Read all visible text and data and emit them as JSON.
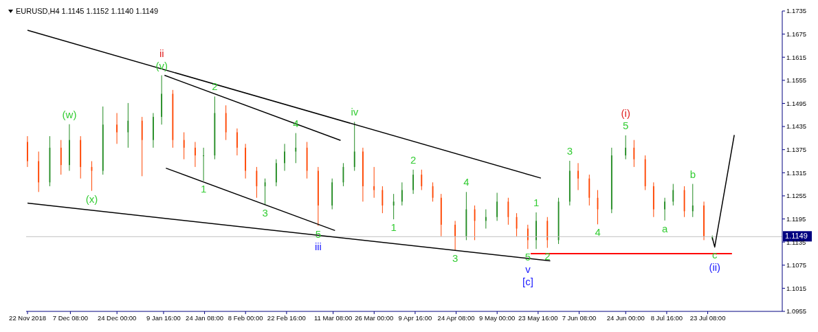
{
  "chart_data": {
    "type": "candlestick",
    "title": "EURUSD,H4  1.1145 1.1152 1.1140 1.1149",
    "x": [
      "2018-11-22",
      "2018-11-26",
      "2018-11-30",
      "2018-12-04",
      "2018-12-07",
      "2018-12-11",
      "2018-12-15",
      "2018-12-19",
      "2018-12-24",
      "2018-12-28",
      "2019-01-02",
      "2019-01-06",
      "2019-01-09",
      "2019-01-13",
      "2019-01-17",
      "2019-01-21",
      "2019-01-24",
      "2019-01-28",
      "2019-02-01",
      "2019-02-05",
      "2019-02-08",
      "2019-02-12",
      "2019-02-15",
      "2019-02-19",
      "2019-02-22",
      "2019-02-26",
      "2019-03-02",
      "2019-03-06",
      "2019-03-11",
      "2019-03-15",
      "2019-03-19",
      "2019-03-22",
      "2019-03-26",
      "2019-03-29",
      "2019-04-02",
      "2019-04-05",
      "2019-04-09",
      "2019-04-12",
      "2019-04-16",
      "2019-04-19",
      "2019-04-24",
      "2019-04-28",
      "2019-05-01",
      "2019-05-05",
      "2019-05-09",
      "2019-05-13",
      "2019-05-16",
      "2019-05-20",
      "2019-05-23",
      "2019-05-27",
      "2019-05-31",
      "2019-06-04",
      "2019-06-07",
      "2019-06-11",
      "2019-06-14",
      "2019-06-19",
      "2019-06-24",
      "2019-06-27",
      "2019-07-01",
      "2019-07-04",
      "2019-07-08",
      "2019-07-11",
      "2019-07-15",
      "2019-07-18",
      "2019-07-22",
      "2019-07-25"
    ],
    "ohlc": [
      [
        1.1395,
        1.141,
        1.133,
        1.1345
      ],
      [
        1.1345,
        1.137,
        1.1265,
        1.129
      ],
      [
        1.129,
        1.141,
        1.128,
        1.138
      ],
      [
        1.138,
        1.14,
        1.131,
        1.1335
      ],
      [
        1.1335,
        1.1441,
        1.132,
        1.14
      ],
      [
        1.14,
        1.141,
        1.13,
        1.133
      ],
      [
        1.133,
        1.1345,
        1.1268,
        1.132
      ],
      [
        1.132,
        1.1487,
        1.131,
        1.144
      ],
      [
        1.144,
        1.147,
        1.139,
        1.142
      ],
      [
        1.142,
        1.1496,
        1.138,
        1.145
      ],
      [
        1.145,
        1.146,
        1.1306,
        1.14
      ],
      [
        1.14,
        1.147,
        1.138,
        1.146
      ],
      [
        1.146,
        1.1568,
        1.144,
        1.152
      ],
      [
        1.152,
        1.153,
        1.138,
        1.14
      ],
      [
        1.14,
        1.142,
        1.135,
        1.138
      ],
      [
        1.138,
        1.1395,
        1.133,
        1.136
      ],
      [
        1.136,
        1.138,
        1.1294,
        1.136
      ],
      [
        1.136,
        1.1513,
        1.135,
        1.147
      ],
      [
        1.147,
        1.149,
        1.14,
        1.142
      ],
      [
        1.142,
        1.143,
        1.136,
        1.138
      ],
      [
        1.138,
        1.139,
        1.13,
        1.132
      ],
      [
        1.132,
        1.133,
        1.125,
        1.128
      ],
      [
        1.128,
        1.13,
        1.1232,
        1.129
      ],
      [
        1.129,
        1.135,
        1.128,
        1.134
      ],
      [
        1.134,
        1.139,
        1.132,
        1.137
      ],
      [
        1.137,
        1.1418,
        1.134,
        1.138
      ],
      [
        1.138,
        1.1395,
        1.13,
        1.132
      ],
      [
        1.132,
        1.133,
        1.1177,
        1.123
      ],
      [
        1.123,
        1.13,
        1.122,
        1.129
      ],
      [
        1.129,
        1.134,
        1.128,
        1.133
      ],
      [
        1.133,
        1.1447,
        1.132,
        1.137
      ],
      [
        1.137,
        1.138,
        1.124,
        1.128
      ],
      [
        1.128,
        1.133,
        1.125,
        1.127
      ],
      [
        1.127,
        1.128,
        1.121,
        1.123
      ],
      [
        1.123,
        1.126,
        1.1194,
        1.124
      ],
      [
        1.124,
        1.129,
        1.123,
        1.127
      ],
      [
        1.127,
        1.1323,
        1.126,
        1.131
      ],
      [
        1.131,
        1.1323,
        1.127,
        1.128
      ],
      [
        1.128,
        1.129,
        1.124,
        1.125
      ],
      [
        1.125,
        1.126,
        1.115,
        1.118
      ],
      [
        1.118,
        1.119,
        1.1113,
        1.115
      ],
      [
        1.115,
        1.1265,
        1.114,
        1.122
      ],
      [
        1.122,
        1.123,
        1.114,
        1.119
      ],
      [
        1.119,
        1.122,
        1.117,
        1.12
      ],
      [
        1.12,
        1.1263,
        1.119,
        1.124
      ],
      [
        1.124,
        1.125,
        1.118,
        1.12
      ],
      [
        1.12,
        1.121,
        1.115,
        1.117
      ],
      [
        1.117,
        1.118,
        1.1117,
        1.114
      ],
      [
        1.114,
        1.1212,
        1.1117,
        1.119
      ],
      [
        1.119,
        1.12,
        1.112,
        1.114
      ],
      [
        1.114,
        1.125,
        1.113,
        1.124
      ],
      [
        1.124,
        1.1346,
        1.123,
        1.132
      ],
      [
        1.132,
        1.134,
        1.127,
        1.13
      ],
      [
        1.13,
        1.131,
        1.123,
        1.125
      ],
      [
        1.125,
        1.127,
        1.1181,
        1.122
      ],
      [
        1.122,
        1.138,
        1.121,
        1.136
      ],
      [
        1.136,
        1.1412,
        1.135,
        1.138
      ],
      [
        1.138,
        1.14,
        1.133,
        1.135
      ],
      [
        1.135,
        1.136,
        1.127,
        1.128
      ],
      [
        1.128,
        1.129,
        1.12,
        1.122
      ],
      [
        1.122,
        1.125,
        1.1191,
        1.124
      ],
      [
        1.124,
        1.1286,
        1.123,
        1.127
      ],
      [
        1.127,
        1.128,
        1.12,
        1.1215
      ],
      [
        1.1215,
        1.1286,
        1.12,
        1.123
      ],
      [
        1.123,
        1.124,
        1.114,
        1.115
      ],
      [
        1.1145,
        1.1152,
        1.114,
        1.1149
      ]
    ],
    "series": [
      {
        "type": "line",
        "color": "#000000",
        "x": [
          "2018-11-22",
          "2019-05-24T16:00"
        ],
        "values": [
          1.1685,
          1.1301
        ]
      },
      {
        "type": "line",
        "color": "#000000",
        "x": [
          "2018-11-22",
          "2019-05-28"
        ],
        "values": [
          1.1236,
          1.1086
        ]
      },
      {
        "type": "line",
        "color": "#000000",
        "x": [
          "2019-01-10",
          "2019-03-14"
        ],
        "values": [
          1.1568,
          1.1399
        ]
      },
      {
        "type": "line",
        "color": "#000000",
        "x": [
          "2019-01-10T12:00",
          "2019-03-12"
        ],
        "values": [
          1.1327,
          1.1165
        ]
      },
      {
        "type": "line",
        "color": "#ff0000",
        "x": [
          "2019-05-21",
          "2019-08-01"
        ],
        "values": [
          1.1105,
          1.1105
        ]
      },
      {
        "type": "line",
        "color": "#000000",
        "x": [
          "2019-07-25T00:00",
          "2019-07-25T20:00",
          "2019-08-01T20:00"
        ],
        "values": [
          1.1146,
          1.1122,
          1.1413
        ]
      }
    ],
    "ref_lines": [
      {
        "axis": "y",
        "value": 1.1149,
        "label": "1.1149",
        "color": "#c0c0c0"
      }
    ],
    "annotations": [
      {
        "text": "(v)",
        "x": "2019-01-09",
        "y": 1.1568
      },
      {
        "text": "ii",
        "x": "2019-01-09",
        "y": 1.1568
      },
      {
        "text": "(w)",
        "x": "2018-12-07",
        "y": 1.1441
      },
      {
        "text": "(x)",
        "x": "2018-12-15",
        "y": 1.1268
      },
      {
        "text": "1",
        "x": "2019-01-24",
        "y": 1.1294
      },
      {
        "text": "2",
        "x": "2019-01-28",
        "y": 1.1513
      },
      {
        "text": "3",
        "x": "2019-02-15",
        "y": 1.1232
      },
      {
        "text": "4",
        "x": "2019-02-26",
        "y": 1.1418
      },
      {
        "text": "5",
        "x": "2019-03-06",
        "y": 1.1177
      },
      {
        "text": "iii",
        "x": "2019-03-06",
        "y": 1.1177
      },
      {
        "text": "iv",
        "x": "2019-03-19",
        "y": 1.1447
      },
      {
        "text": "1",
        "x": "2019-04-02",
        "y": 1.1194
      },
      {
        "text": "2",
        "x": "2019-04-09",
        "y": 1.1323
      },
      {
        "text": "3",
        "x": "2019-04-24",
        "y": 1.1113
      },
      {
        "text": "4",
        "x": "2019-04-28",
        "y": 1.1265
      },
      {
        "text": "5",
        "x": "2019-05-20",
        "y": 1.1117
      },
      {
        "text": "v",
        "x": "2019-05-20",
        "y": 1.1117
      },
      {
        "text": "[c]",
        "x": "2019-05-20",
        "y": 1.1117
      },
      {
        "text": "1",
        "x": "2019-05-23",
        "y": 1.1212
      },
      {
        "text": "2",
        "x": "2019-05-27",
        "y": 1.112
      },
      {
        "text": "3",
        "x": "2019-06-04",
        "y": 1.1346
      },
      {
        "text": "4",
        "x": "2019-06-14",
        "y": 1.1181
      },
      {
        "text": "5",
        "x": "2019-06-24",
        "y": 1.1412
      },
      {
        "text": "(i)",
        "x": "2019-06-24",
        "y": 1.1412
      },
      {
        "text": "a",
        "x": "2019-07-08",
        "y": 1.1191
      },
      {
        "text": "b",
        "x": "2019-07-18",
        "y": 1.1286
      },
      {
        "text": "c",
        "x": "2019-07-25T20:00",
        "y": 1.1122
      },
      {
        "text": "(ii)",
        "x": "2019-07-25T20:00",
        "y": 1.1122
      }
    ],
    "xlim": [
      "2018-11-21T12:00",
      "2019-08-19"
    ],
    "xticks": [
      {
        "value": "2018-11-22",
        "label": "22 Nov 2018"
      },
      {
        "value": "2018-12-07T08:00",
        "label": "7 Dec 08:00"
      },
      {
        "value": "2018-12-24",
        "label": "24 Dec 00:00"
      },
      {
        "value": "2019-01-09T16:00",
        "label": "9 Jan 16:00"
      },
      {
        "value": "2019-01-24T08:00",
        "label": "24 Jan 08:00"
      },
      {
        "value": "2019-02-08",
        "label": "8 Feb 00:00"
      },
      {
        "value": "2019-02-22T16:00",
        "label": "22 Feb 16:00"
      },
      {
        "value": "2019-03-11T08:00",
        "label": "11 Mar 08:00"
      },
      {
        "value": "2019-03-26",
        "label": "26 Mar 00:00"
      },
      {
        "value": "2019-04-09T16:00",
        "label": "9 Apr 16:00"
      },
      {
        "value": "2019-04-24T08:00",
        "label": "24 Apr 08:00"
      },
      {
        "value": "2019-05-09",
        "label": "9 May 00:00"
      },
      {
        "value": "2019-05-23T16:00",
        "label": "23 May 16:00"
      },
      {
        "value": "2019-06-07T08:00",
        "label": "7 Jun 08:00"
      },
      {
        "value": "2019-06-24",
        "label": "24 Jun 00:00"
      },
      {
        "value": "2019-07-08T16:00",
        "label": "8 Jul 16:00"
      },
      {
        "value": "2019-07-23T08:00",
        "label": "23 Jul 08:00"
      }
    ],
    "ylim": [
      1.0955,
      1.1735
    ],
    "yticks": [
      1.0955,
      1.1015,
      1.1075,
      1.1135,
      1.1195,
      1.1255,
      1.1315,
      1.1375,
      1.1435,
      1.1495,
      1.1555,
      1.1615,
      1.1675,
      1.1735
    ],
    "grid": false
  }
}
